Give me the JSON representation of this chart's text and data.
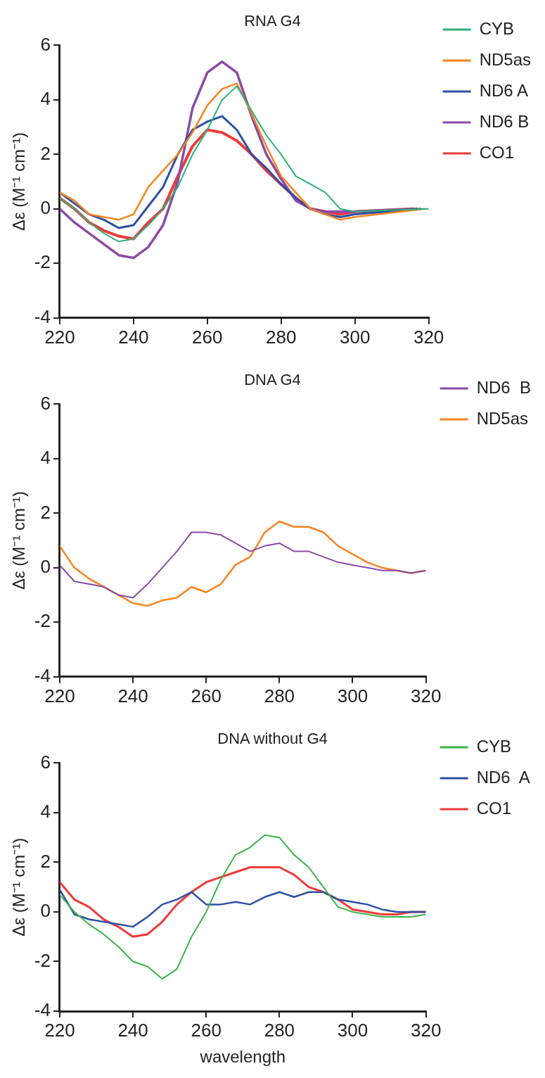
{
  "chart_data": [
    {
      "type": "line",
      "title": "RNA G4",
      "ylabel": "Δε (M⁻¹ cm⁻¹)",
      "xlim": [
        220,
        320
      ],
      "xticks": [
        220,
        240,
        260,
        280,
        300,
        320
      ],
      "ylim": [
        -4,
        6
      ],
      "yticks": [
        -4,
        -2,
        0,
        2,
        4,
        6
      ],
      "grid": false,
      "legend": "right",
      "marker": "none",
      "line_style": "solid",
      "series": [
        {
          "name": "CYB",
          "color": "#2bb17a",
          "x": [
            220,
            224,
            228,
            232,
            236,
            240,
            244,
            248,
            252,
            256,
            260,
            264,
            268,
            272,
            276,
            280,
            284,
            288,
            292,
            296,
            300,
            320
          ],
          "values": [
            0.4,
            0.0,
            -0.5,
            -0.9,
            -1.2,
            -1.1,
            -0.6,
            0.0,
            0.8,
            2.0,
            2.9,
            4.0,
            4.5,
            3.6,
            2.7,
            2.0,
            1.2,
            0.9,
            0.6,
            0.0,
            -0.1,
            0.0
          ]
        },
        {
          "name": "ND5as",
          "color": "#f7841f",
          "x": [
            220,
            224,
            228,
            232,
            236,
            240,
            244,
            248,
            252,
            256,
            260,
            264,
            268,
            272,
            276,
            280,
            284,
            288,
            292,
            296,
            300,
            319
          ],
          "values": [
            0.6,
            0.3,
            -0.2,
            -0.3,
            -0.4,
            -0.2,
            0.8,
            1.4,
            2.0,
            2.8,
            3.8,
            4.4,
            4.6,
            3.5,
            2.3,
            1.2,
            0.6,
            0.0,
            -0.2,
            -0.4,
            -0.3,
            0.0
          ]
        },
        {
          "name": "ND6 A",
          "color": "#2e4fa3",
          "x": [
            220,
            224,
            228,
            232,
            236,
            240,
            244,
            248,
            252,
            256,
            260,
            264,
            268,
            272,
            276,
            280,
            284,
            288,
            292,
            296,
            300,
            318
          ],
          "values": [
            0.6,
            0.2,
            -0.2,
            -0.4,
            -0.7,
            -0.6,
            0.1,
            0.8,
            2.0,
            2.9,
            3.2,
            3.4,
            2.9,
            2.0,
            1.5,
            0.9,
            0.4,
            0.0,
            -0.2,
            -0.3,
            -0.2,
            0.0
          ]
        },
        {
          "name": "ND6 B",
          "color": "#8a4aa6",
          "x": [
            220,
            224,
            228,
            232,
            236,
            240,
            244,
            248,
            252,
            256,
            260,
            264,
            268,
            272,
            276,
            280,
            284,
            288,
            292,
            296,
            300,
            317
          ],
          "values": [
            0.0,
            -0.5,
            -0.9,
            -1.3,
            -1.7,
            -1.8,
            -1.4,
            -0.6,
            1.0,
            3.7,
            5.0,
            5.4,
            5.0,
            3.4,
            2.0,
            1.1,
            0.3,
            0.0,
            -0.1,
            -0.1,
            -0.1,
            0.0
          ]
        },
        {
          "name": "CO1",
          "color": "#ee3a3a",
          "x": [
            220,
            224,
            228,
            232,
            236,
            240,
            244,
            248,
            252,
            256,
            260,
            264,
            268,
            272,
            276,
            280,
            284,
            288,
            292,
            296,
            300,
            316
          ],
          "values": [
            0.4,
            0.0,
            -0.5,
            -0.8,
            -1.0,
            -1.1,
            -0.5,
            0.0,
            1.2,
            2.3,
            2.9,
            2.8,
            2.5,
            2.0,
            1.4,
            0.9,
            0.4,
            0.0,
            -0.1,
            -0.2,
            -0.1,
            0.0
          ]
        }
      ]
    },
    {
      "type": "line",
      "title": "DNA G4",
      "ylabel": "Δε (M⁻¹ cm⁻¹)",
      "x": [
        220,
        224,
        228,
        232,
        236,
        240,
        244,
        248,
        252,
        256,
        260,
        264,
        268,
        272,
        276,
        280,
        284,
        288,
        292,
        296,
        300,
        304,
        308,
        312,
        316,
        320
      ],
      "xlim": [
        220,
        320
      ],
      "xticks": [
        220,
        240,
        260,
        280,
        300,
        320
      ],
      "ylim": [
        -4,
        6
      ],
      "yticks": [
        -4,
        -2,
        0,
        2,
        4,
        6
      ],
      "grid": false,
      "legend": "right",
      "marker": "none",
      "line_style": "solid",
      "series": [
        {
          "name": "ND6  B",
          "color": "#8a4aa6",
          "values": [
            0.1,
            -0.5,
            -0.6,
            -0.7,
            -1.0,
            -1.1,
            -0.6,
            0.0,
            0.6,
            1.3,
            1.3,
            1.2,
            0.9,
            0.6,
            0.8,
            0.9,
            0.6,
            0.6,
            0.4,
            0.2,
            0.1,
            0.0,
            -0.1,
            -0.1,
            -0.2,
            -0.1
          ]
        },
        {
          "name": "ND5as",
          "color": "#f7841f",
          "values": [
            0.8,
            0.0,
            -0.4,
            -0.7,
            -1.0,
            -1.3,
            -1.4,
            -1.2,
            -1.1,
            -0.7,
            -0.9,
            -0.6,
            0.1,
            0.4,
            1.3,
            1.7,
            1.5,
            1.5,
            1.3,
            0.8,
            0.5,
            0.2,
            0.0,
            -0.1,
            -0.2,
            -0.1
          ]
        }
      ]
    },
    {
      "type": "line",
      "title": "DNA without G4",
      "xlabel": "wavelength",
      "ylabel": "Δε (M⁻¹ cm⁻¹)",
      "x": [
        220,
        224,
        228,
        232,
        236,
        240,
        244,
        248,
        252,
        256,
        260,
        264,
        268,
        272,
        276,
        280,
        284,
        288,
        292,
        296,
        300,
        304,
        308,
        312,
        316,
        320
      ],
      "xlim": [
        220,
        320
      ],
      "xticks": [
        220,
        240,
        260,
        280,
        300,
        320
      ],
      "ylim": [
        -4,
        6
      ],
      "yticks": [
        -4,
        -2,
        0,
        2,
        4,
        6
      ],
      "grid": false,
      "legend": "right",
      "marker": "none",
      "line_style": "solid",
      "series": [
        {
          "name": "CYB",
          "color": "#3ab54a",
          "values": [
            0.7,
            0.0,
            -0.5,
            -0.9,
            -1.4,
            -2.0,
            -2.2,
            -2.7,
            -2.3,
            -1.0,
            0.0,
            1.3,
            2.3,
            2.6,
            3.1,
            3.0,
            2.3,
            1.8,
            1.0,
            0.2,
            0.0,
            -0.1,
            -0.2,
            -0.2,
            -0.2,
            -0.1
          ]
        },
        {
          "name": "ND6  A",
          "color": "#2e4fa3",
          "values": [
            0.9,
            -0.1,
            -0.3,
            -0.4,
            -0.5,
            -0.6,
            -0.2,
            0.3,
            0.5,
            0.8,
            0.3,
            0.3,
            0.4,
            0.3,
            0.6,
            0.8,
            0.6,
            0.8,
            0.8,
            0.5,
            0.4,
            0.3,
            0.1,
            0.0,
            0.0,
            0.0
          ]
        },
        {
          "name": "CO1",
          "color": "#ee3a3a",
          "values": [
            1.2,
            0.5,
            0.2,
            -0.3,
            -0.6,
            -1.0,
            -0.9,
            -0.4,
            0.3,
            0.8,
            1.2,
            1.4,
            1.6,
            1.8,
            1.8,
            1.8,
            1.5,
            1.0,
            0.8,
            0.5,
            0.1,
            0.0,
            -0.1,
            -0.1,
            0.0,
            0.0
          ]
        }
      ]
    }
  ]
}
